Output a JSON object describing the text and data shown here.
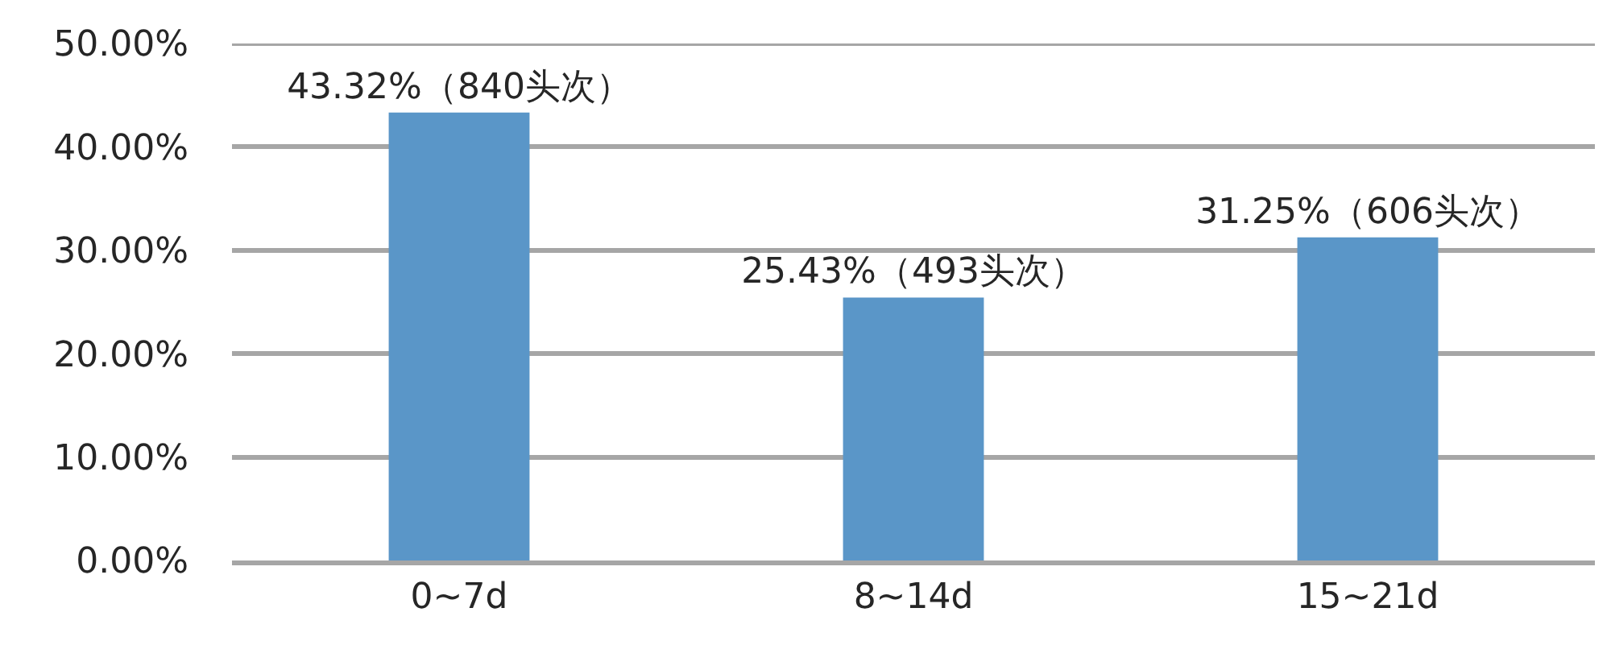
{
  "chart_data": {
    "type": "bar",
    "categories": [
      "0~7d",
      "8~14d",
      "15~21d"
    ],
    "values": [
      43.32,
      25.43,
      31.25
    ],
    "value_labels": [
      "43.32%（840头次）",
      "25.43%（493头次）",
      "31.25%（606头次）"
    ],
    "color": "#5a96c8",
    "ylim": [
      0,
      50
    ],
    "yticks": [
      {
        "value": 0,
        "label": "0.00%"
      },
      {
        "value": 10,
        "label": "10.00%"
      },
      {
        "value": 20,
        "label": "20.00%"
      },
      {
        "value": 30,
        "label": "30.00%"
      },
      {
        "value": 40,
        "label": "40.00%"
      },
      {
        "value": 50,
        "label": "50.00%"
      }
    ],
    "grid": "y"
  }
}
